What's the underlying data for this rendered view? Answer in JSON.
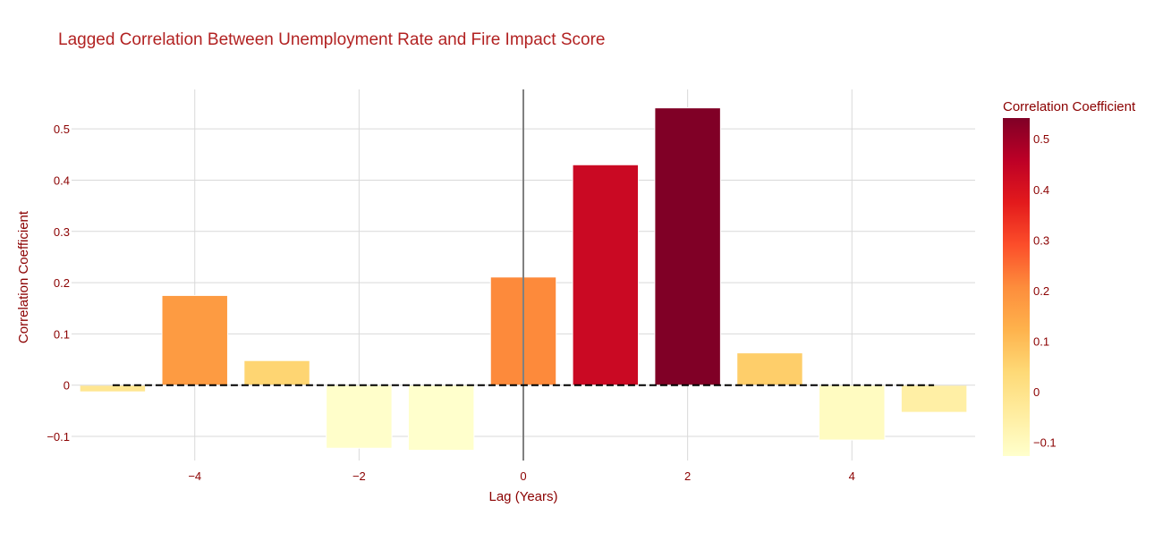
{
  "chart_data": {
    "type": "bar",
    "title": "Lagged Correlation Between Unemployment Rate and Fire Impact Score",
    "xlabel": "Lag (Years)",
    "ylabel": "Correlation Coefficient",
    "x": [
      -5,
      -4,
      -3,
      -2,
      -1,
      0,
      1,
      2,
      3,
      4,
      5
    ],
    "values": [
      -0.013,
      0.175,
      0.048,
      -0.123,
      -0.127,
      0.211,
      0.43,
      0.541,
      0.063,
      -0.107,
      -0.053
    ],
    "xlim": [
      -5.5,
      5.5
    ],
    "ylim": [
      -0.147,
      0.577
    ],
    "x_ticks": [
      -4,
      -2,
      0,
      2,
      4
    ],
    "x_tick_labels": [
      "−4",
      "−2",
      "0",
      "2",
      "4"
    ],
    "y_ticks": [
      -0.1,
      0,
      0.1,
      0.2,
      0.3,
      0.4,
      0.5
    ],
    "y_tick_labels": [
      "−0.1",
      "0",
      "0.1",
      "0.2",
      "0.3",
      "0.4",
      "0.5"
    ],
    "grid": true,
    "reference_lines": [
      "y = 0 (dashed)",
      "x = 0 (solid)"
    ],
    "colorbar": {
      "title": "Correlation Coefficient",
      "range": [
        -0.127,
        0.541
      ],
      "ticks": [
        -0.1,
        0,
        0.1,
        0.2,
        0.3,
        0.4,
        0.5
      ],
      "tick_labels": [
        "−0.1",
        "0",
        "0.1",
        "0.2",
        "0.3",
        "0.4",
        "0.5"
      ],
      "colorscale": [
        "#ffffcc",
        "#ffeda0",
        "#fed976",
        "#feb24c",
        "#fd8d3c",
        "#fc4e2a",
        "#e31a1c",
        "#bd0026",
        "#800026"
      ]
    },
    "colors": {
      "title": "#b22222",
      "axis_text": "#8b0000",
      "grid": "#d9d9d9",
      "bar_outline": "#ffffff",
      "zero_dash": "#000000",
      "zero_vline": "#808080"
    }
  }
}
